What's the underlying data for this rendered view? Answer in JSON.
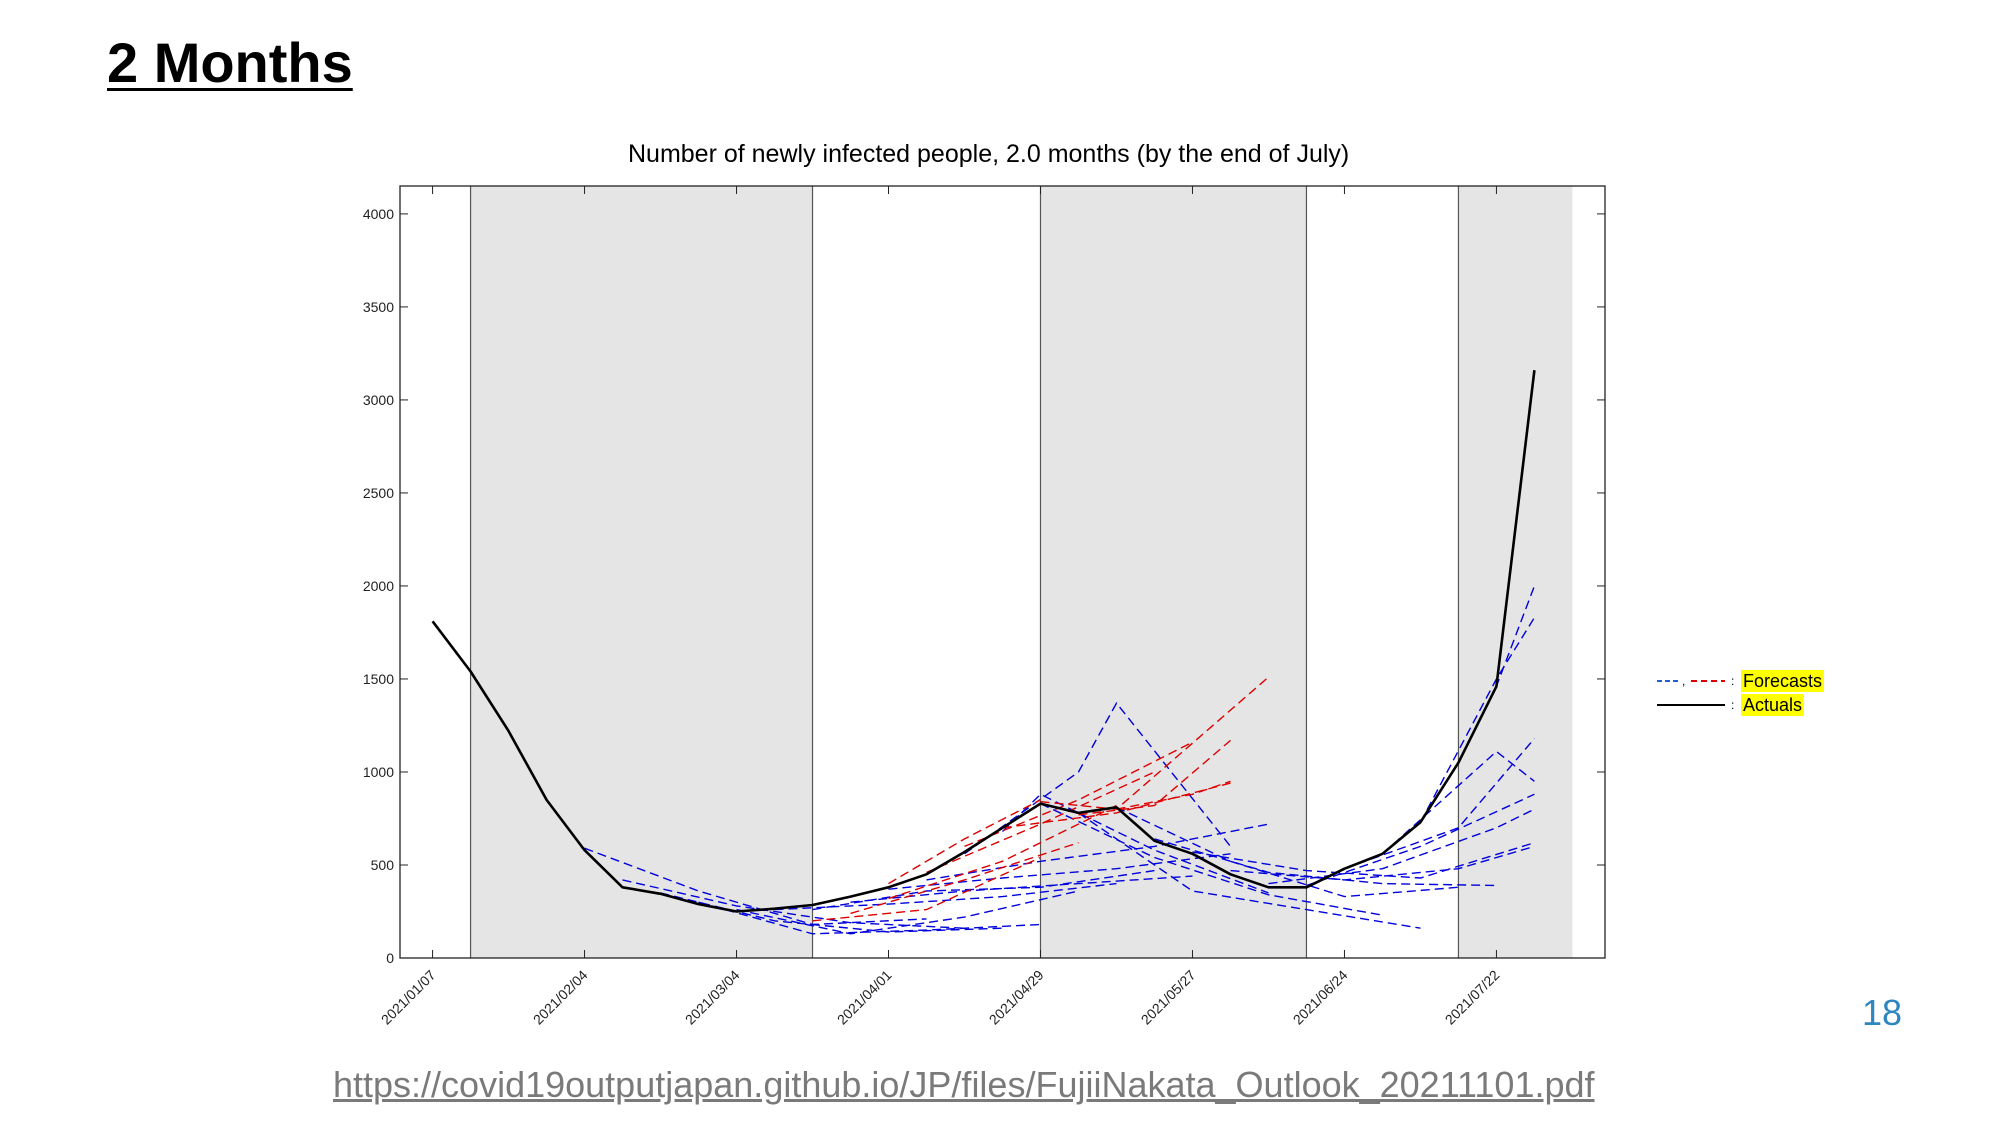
{
  "slide": {
    "title": "2 Months",
    "page_number": "18",
    "source_url": "https://covid19outputjapan.github.io/JP/files/FujiiNakata_Outlook_20211101.pdf"
  },
  "legend": {
    "forecasts_symbol": "—, – –:",
    "forecasts_label": "Forecasts",
    "actuals_symbol": "—:",
    "actuals_label": "Actuals"
  },
  "colors": {
    "actual": "#000000",
    "forecast_blue": "#0000dd",
    "forecast_red": "#dd0000",
    "shade": "#e5e5e5",
    "legend_highlight": "#ffff00",
    "page_number": "#2e86c1",
    "link": "#7a7a7a"
  },
  "chart_data": {
    "type": "line",
    "title": "Number of newly infected people, 2.0 months (by the end of July)",
    "xlabel": "",
    "ylabel": "",
    "x_tick_labels": [
      "2021/01/07",
      "2021/02/04",
      "2021/03/04",
      "2021/04/01",
      "2021/04/29",
      "2021/05/27",
      "2021/06/24",
      "2021/07/22"
    ],
    "ylim": [
      0,
      4150
    ],
    "y_ticks": [
      0,
      500,
      1000,
      1500,
      2000,
      2500,
      3000,
      3500,
      4000
    ],
    "shaded_periods": [
      {
        "start": "2021/01/14",
        "end": "2021/03/18"
      },
      {
        "start": "2021/04/29",
        "end": "2021/06/17"
      },
      {
        "start": "2021/07/15",
        "end": "2021/08/05"
      }
    ],
    "vertical_lines": [
      "2021/01/14",
      "2021/03/18",
      "2021/04/29",
      "2021/06/17",
      "2021/07/15"
    ],
    "grid": false,
    "legend_position": "right",
    "actual": {
      "name": "Actuals",
      "x": [
        "2021/01/07",
        "2021/01/14",
        "2021/01/21",
        "2021/01/28",
        "2021/02/04",
        "2021/02/11",
        "2021/02/18",
        "2021/02/25",
        "2021/03/04",
        "2021/03/11",
        "2021/03/18",
        "2021/03/25",
        "2021/04/01",
        "2021/04/08",
        "2021/04/15",
        "2021/04/22",
        "2021/04/29",
        "2021/05/06",
        "2021/05/13",
        "2021/05/20",
        "2021/05/27",
        "2021/06/03",
        "2021/06/10",
        "2021/06/17",
        "2021/06/24",
        "2021/07/01",
        "2021/07/08",
        "2021/07/15",
        "2021/07/22",
        "2021/07/29"
      ],
      "y": [
        1810,
        1540,
        1220,
        850,
        580,
        380,
        345,
        290,
        250,
        265,
        285,
        330,
        380,
        450,
        570,
        700,
        830,
        780,
        810,
        630,
        560,
        450,
        380,
        380,
        480,
        560,
        730,
        1050,
        1460,
        3160
      ]
    },
    "forecasts": [
      {
        "color": "blue",
        "x": [
          "2021/02/04",
          "2021/02/25",
          "2021/03/18",
          "2021/04/08"
        ],
        "y": [
          590,
          360,
          180,
          210
        ]
      },
      {
        "color": "blue",
        "x": [
          "2021/02/11",
          "2021/03/04",
          "2021/03/25",
          "2021/04/15"
        ],
        "y": [
          420,
          280,
          190,
          160
        ]
      },
      {
        "color": "blue",
        "x": [
          "2021/02/18",
          "2021/03/11",
          "2021/04/01",
          "2021/04/22"
        ],
        "y": [
          350,
          200,
          140,
          160
        ]
      },
      {
        "color": "blue",
        "x": [
          "2021/02/25",
          "2021/03/18",
          "2021/04/08",
          "2021/04/29"
        ],
        "y": [
          300,
          130,
          150,
          180
        ]
      },
      {
        "color": "blue",
        "x": [
          "2021/03/04",
          "2021/03/25",
          "2021/04/15",
          "2021/05/06"
        ],
        "y": [
          260,
          130,
          220,
          360
        ]
      },
      {
        "color": "blue",
        "x": [
          "2021/03/11",
          "2021/04/01",
          "2021/04/22",
          "2021/05/13"
        ],
        "y": [
          260,
          290,
          330,
          400
        ]
      },
      {
        "color": "blue",
        "x": [
          "2021/03/18",
          "2021/04/08",
          "2021/04/29",
          "2021/05/20"
        ],
        "y": [
          260,
          360,
          380,
          470
        ]
      },
      {
        "color": "blue",
        "x": [
          "2021/03/25",
          "2021/04/15",
          "2021/05/06",
          "2021/05/27"
        ],
        "y": [
          300,
          360,
          400,
          440
        ]
      },
      {
        "color": "blue",
        "x": [
          "2021/04/01",
          "2021/04/22",
          "2021/05/13",
          "2021/06/03"
        ],
        "y": [
          370,
          430,
          480,
          560
        ]
      },
      {
        "color": "blue",
        "x": [
          "2021/04/08",
          "2021/04/29",
          "2021/05/20",
          "2021/06/10"
        ],
        "y": [
          420,
          520,
          600,
          720
        ]
      },
      {
        "color": "blue",
        "x": [
          "2021/04/15",
          "2021/05/06",
          "2021/05/13",
          "2021/06/03"
        ],
        "y": [
          560,
          1000,
          1370,
          600
        ]
      },
      {
        "color": "blue",
        "x": [
          "2021/04/22",
          "2021/04/29",
          "2021/05/20",
          "2021/06/10"
        ],
        "y": [
          680,
          880,
          580,
          350
        ]
      },
      {
        "color": "blue",
        "x": [
          "2021/04/29",
          "2021/05/20",
          "2021/06/10",
          "2021/07/01"
        ],
        "y": [
          830,
          540,
          340,
          230
        ]
      },
      {
        "color": "blue",
        "x": [
          "2021/05/06",
          "2021/05/27",
          "2021/06/17",
          "2021/07/08"
        ],
        "y": [
          780,
          360,
          260,
          160
        ]
      },
      {
        "color": "blue",
        "x": [
          "2021/05/13",
          "2021/06/03",
          "2021/06/24",
          "2021/07/15"
        ],
        "y": [
          810,
          520,
          330,
          380
        ]
      },
      {
        "color": "blue",
        "x": [
          "2021/05/20",
          "2021/06/10",
          "2021/07/01",
          "2021/07/22"
        ],
        "y": [
          640,
          460,
          400,
          390
        ]
      },
      {
        "color": "blue",
        "x": [
          "2021/05/27",
          "2021/06/17",
          "2021/07/08",
          "2021/07/29"
        ],
        "y": [
          570,
          470,
          430,
          620
        ]
      },
      {
        "color": "blue",
        "x": [
          "2021/06/03",
          "2021/06/24",
          "2021/07/15",
          "2021/07/29"
        ],
        "y": [
          470,
          420,
          480,
          600
        ]
      },
      {
        "color": "blue",
        "x": [
          "2021/06/10",
          "2021/07/01",
          "2021/07/22",
          "2021/07/29"
        ],
        "y": [
          400,
          480,
          700,
          800
        ]
      },
      {
        "color": "blue",
        "x": [
          "2021/06/17",
          "2021/07/08",
          "2021/07/29"
        ],
        "y": [
          390,
          600,
          880
        ]
      },
      {
        "color": "blue",
        "x": [
          "2021/06/24",
          "2021/07/15",
          "2021/07/29"
        ],
        "y": [
          480,
          700,
          1180
        ]
      },
      {
        "color": "blue",
        "x": [
          "2021/07/01",
          "2021/07/22",
          "2021/07/29"
        ],
        "y": [
          560,
          1110,
          950
        ]
      },
      {
        "color": "blue",
        "x": [
          "2021/07/08",
          "2021/07/22",
          "2021/07/29"
        ],
        "y": [
          730,
          1500,
          1830
        ]
      },
      {
        "color": "blue",
        "x": [
          "2021/07/15",
          "2021/07/22",
          "2021/07/29"
        ],
        "y": [
          1050,
          1460,
          2000
        ]
      },
      {
        "color": "red",
        "x": [
          "2021/03/18",
          "2021/04/08",
          "2021/04/29"
        ],
        "y": [
          200,
          260,
          540
        ]
      },
      {
        "color": "red",
        "x": [
          "2021/03/25",
          "2021/04/15",
          "2021/05/06"
        ],
        "y": [
          240,
          420,
          620
        ]
      },
      {
        "color": "red",
        "x": [
          "2021/04/01",
          "2021/04/22",
          "2021/05/13"
        ],
        "y": [
          320,
          520,
          820
        ]
      },
      {
        "color": "red",
        "x": [
          "2021/04/08",
          "2021/04/29",
          "2021/05/20"
        ],
        "y": [
          460,
          720,
          1000
        ]
      },
      {
        "color": "red",
        "x": [
          "2021/04/15",
          "2021/05/06",
          "2021/05/27"
        ],
        "y": [
          600,
          850,
          1160
        ]
      },
      {
        "color": "red",
        "x": [
          "2021/04/01",
          "2021/04/15",
          "2021/04/29"
        ],
        "y": [
          400,
          640,
          850
        ]
      },
      {
        "color": "red",
        "x": [
          "2021/04/22",
          "2021/05/13",
          "2021/06/03"
        ],
        "y": [
          700,
          780,
          940
        ]
      },
      {
        "color": "red",
        "x": [
          "2021/04/29",
          "2021/05/13",
          "2021/06/10"
        ],
        "y": [
          840,
          800,
          1510
        ]
      },
      {
        "color": "red",
        "x": [
          "2021/05/06",
          "2021/05/20",
          "2021/06/03"
        ],
        "y": [
          770,
          820,
          1170
        ]
      },
      {
        "color": "red",
        "x": [
          "2021/05/13",
          "2021/05/27",
          "2021/06/03"
        ],
        "y": [
          800,
          880,
          950
        ]
      }
    ]
  }
}
